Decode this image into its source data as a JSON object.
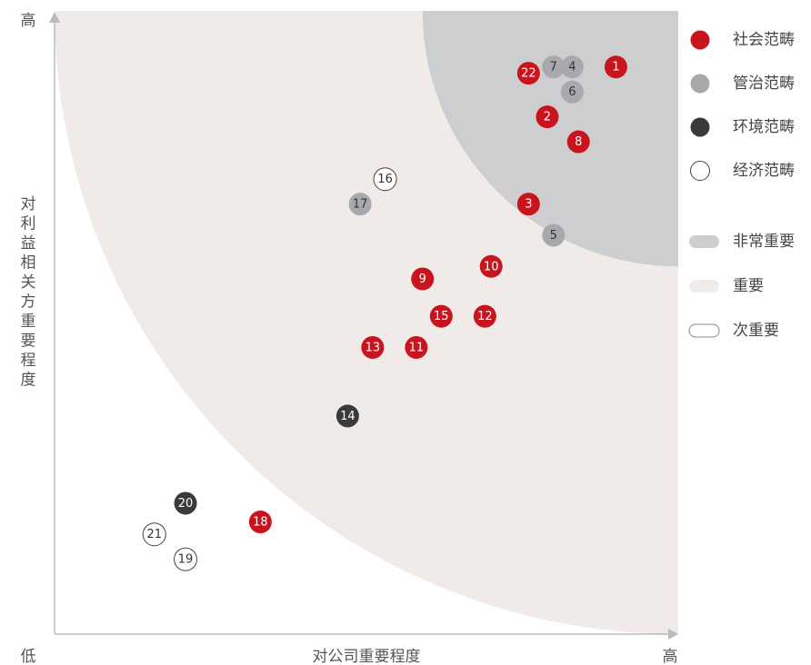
{
  "chart_data": {
    "type": "scatter",
    "title": "",
    "xlabel": "对公司重要程度",
    "ylabel": "对利益相关方重要程度",
    "x_low_label": "低",
    "x_high_label": "高",
    "y_high_label": "高",
    "xlim": [
      0,
      10
    ],
    "ylim": [
      0,
      10
    ],
    "categories": [
      {
        "key": "social",
        "name": "社会范畴",
        "fill": "#c8151d",
        "stroke": "none",
        "text": "#ffffff"
      },
      {
        "key": "governance",
        "name": "管治范畴",
        "fill": "#a7a9ac",
        "stroke": "none",
        "text": "#333333"
      },
      {
        "key": "environment",
        "name": "环境范畴",
        "fill": "#3a3a3a",
        "stroke": "none",
        "text": "#ffffff"
      },
      {
        "key": "economic",
        "name": "经济范畴",
        "fill": "#ffffff",
        "stroke": "#444444",
        "text": "#333333"
      }
    ],
    "zones": [
      {
        "name": "非常重要",
        "color": "#cdced0",
        "radius": 4.1
      },
      {
        "name": "重要",
        "color": "#f0ebe9",
        "radius": 10.0
      },
      {
        "name": "次重要",
        "color": "#ffffff",
        "radius": 0
      }
    ],
    "points": [
      {
        "id": "1",
        "x": 9.0,
        "y": 9.1,
        "category": "social"
      },
      {
        "id": "2",
        "x": 7.9,
        "y": 8.3,
        "category": "social"
      },
      {
        "id": "3",
        "x": 7.6,
        "y": 6.9,
        "category": "social"
      },
      {
        "id": "4",
        "x": 8.3,
        "y": 9.1,
        "category": "governance"
      },
      {
        "id": "5",
        "x": 8.0,
        "y": 6.4,
        "category": "governance"
      },
      {
        "id": "6",
        "x": 8.3,
        "y": 8.7,
        "category": "governance"
      },
      {
        "id": "7",
        "x": 8.0,
        "y": 9.1,
        "category": "governance"
      },
      {
        "id": "8",
        "x": 8.4,
        "y": 7.9,
        "category": "social"
      },
      {
        "id": "9",
        "x": 5.9,
        "y": 5.7,
        "category": "social"
      },
      {
        "id": "10",
        "x": 7.0,
        "y": 5.9,
        "category": "social"
      },
      {
        "id": "11",
        "x": 5.8,
        "y": 4.6,
        "category": "social"
      },
      {
        "id": "12",
        "x": 6.9,
        "y": 5.1,
        "category": "social"
      },
      {
        "id": "13",
        "x": 5.1,
        "y": 4.6,
        "category": "social"
      },
      {
        "id": "14",
        "x": 4.7,
        "y": 3.5,
        "category": "environment"
      },
      {
        "id": "15",
        "x": 6.2,
        "y": 5.1,
        "category": "social"
      },
      {
        "id": "16",
        "x": 5.3,
        "y": 7.3,
        "category": "economic"
      },
      {
        "id": "17",
        "x": 4.9,
        "y": 6.9,
        "category": "governance"
      },
      {
        "id": "18",
        "x": 3.3,
        "y": 1.8,
        "category": "social"
      },
      {
        "id": "19",
        "x": 2.1,
        "y": 1.2,
        "category": "economic"
      },
      {
        "id": "20",
        "x": 2.1,
        "y": 2.1,
        "category": "environment"
      },
      {
        "id": "21",
        "x": 1.6,
        "y": 1.6,
        "category": "economic"
      },
      {
        "id": "22",
        "x": 7.6,
        "y": 9.0,
        "category": "social"
      }
    ],
    "grid": false,
    "legend_position": "right"
  }
}
